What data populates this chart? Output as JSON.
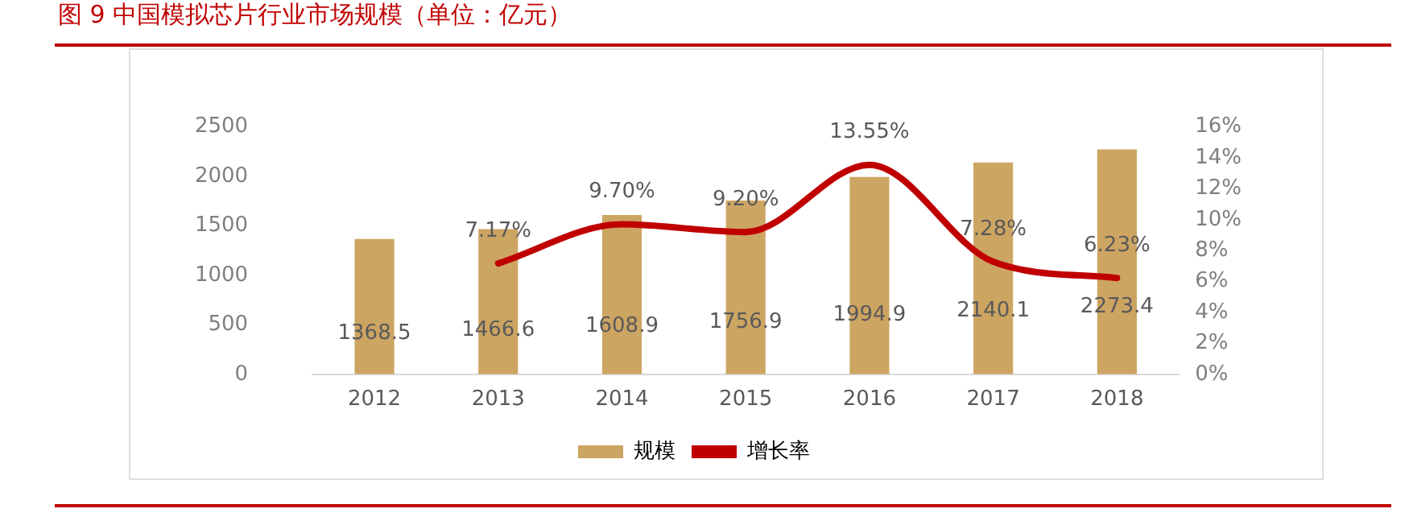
{
  "chart_data": {
    "type": "bar",
    "title": "图 9 中国模拟芯片行业市场规模（单位：亿元）",
    "categories": [
      "2012",
      "2013",
      "2014",
      "2015",
      "2016",
      "2017",
      "2018"
    ],
    "series": [
      {
        "name": "规模",
        "color": "#cda562",
        "values": [
          1368.5,
          1466.6,
          1608.9,
          1756.9,
          1994.9,
          2140.1,
          2273.4
        ],
        "value_labels": [
          "1368.5",
          "1466.6",
          "1608.9",
          "1756.9",
          "1994.9",
          "2140.1",
          "2273.4"
        ]
      },
      {
        "name": "增长率",
        "type": "line",
        "axis": "y2",
        "color": "#c00000",
        "values": [
          null,
          7.17,
          9.7,
          9.2,
          13.55,
          7.28,
          6.23
        ],
        "value_labels": [
          null,
          "7.17%",
          "9.70%",
          "9.20%",
          "13.55%",
          "7.28%",
          "6.23%"
        ]
      }
    ],
    "ylim": [
      0,
      2500
    ],
    "yticks": [
      0,
      500,
      1000,
      1500,
      2000,
      2500
    ],
    "y2lim": [
      0,
      16
    ],
    "y2ticks": [
      {
        "value": 0,
        "label": "0%"
      },
      {
        "value": 2,
        "label": "2%"
      },
      {
        "value": 4,
        "label": "4%"
      },
      {
        "value": 6,
        "label": "6%"
      },
      {
        "value": 8,
        "label": "8%"
      },
      {
        "value": 10,
        "label": "10%"
      },
      {
        "value": 12,
        "label": "12%"
      },
      {
        "value": 14,
        "label": "14%"
      },
      {
        "value": 16,
        "label": "16%"
      }
    ],
    "grid": false,
    "legend": "bottom",
    "marker": "none",
    "line_style": "solid"
  }
}
